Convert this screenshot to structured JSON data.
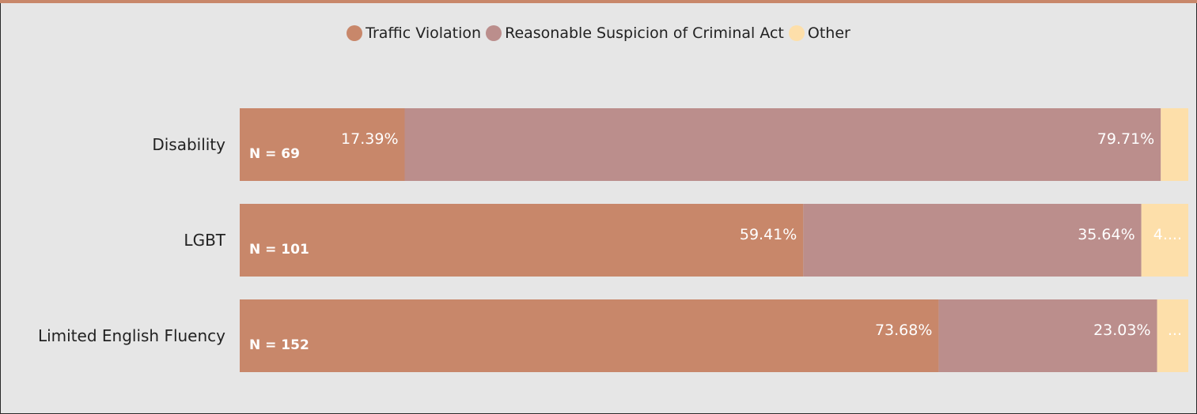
{
  "chart_data": {
    "type": "bar",
    "orientation": "horizontal",
    "stacked": "100%",
    "legend_position": "top-center",
    "categories": [
      "Disability",
      "LGBT",
      "Limited English Fluency"
    ],
    "n_labels": [
      "N = 69",
      "N = 101",
      "N = 152"
    ],
    "series": [
      {
        "name": "Traffic Violation",
        "color": "#c8876a",
        "values": [
          17.39,
          59.41,
          73.68
        ],
        "labels": [
          "17.39%",
          "59.41%",
          "73.68%"
        ]
      },
      {
        "name": "Reasonable Suspicion of Criminal Act",
        "color": "#bb8e8c",
        "values": [
          79.71,
          35.64,
          23.03
        ],
        "labels": [
          "79.71%",
          "35.64%",
          "23.03%"
        ]
      },
      {
        "name": "Other",
        "color": "#fddfaa",
        "values": [
          2.9,
          4.95,
          3.29
        ],
        "labels": [
          "",
          "4....",
          "..."
        ]
      }
    ]
  }
}
